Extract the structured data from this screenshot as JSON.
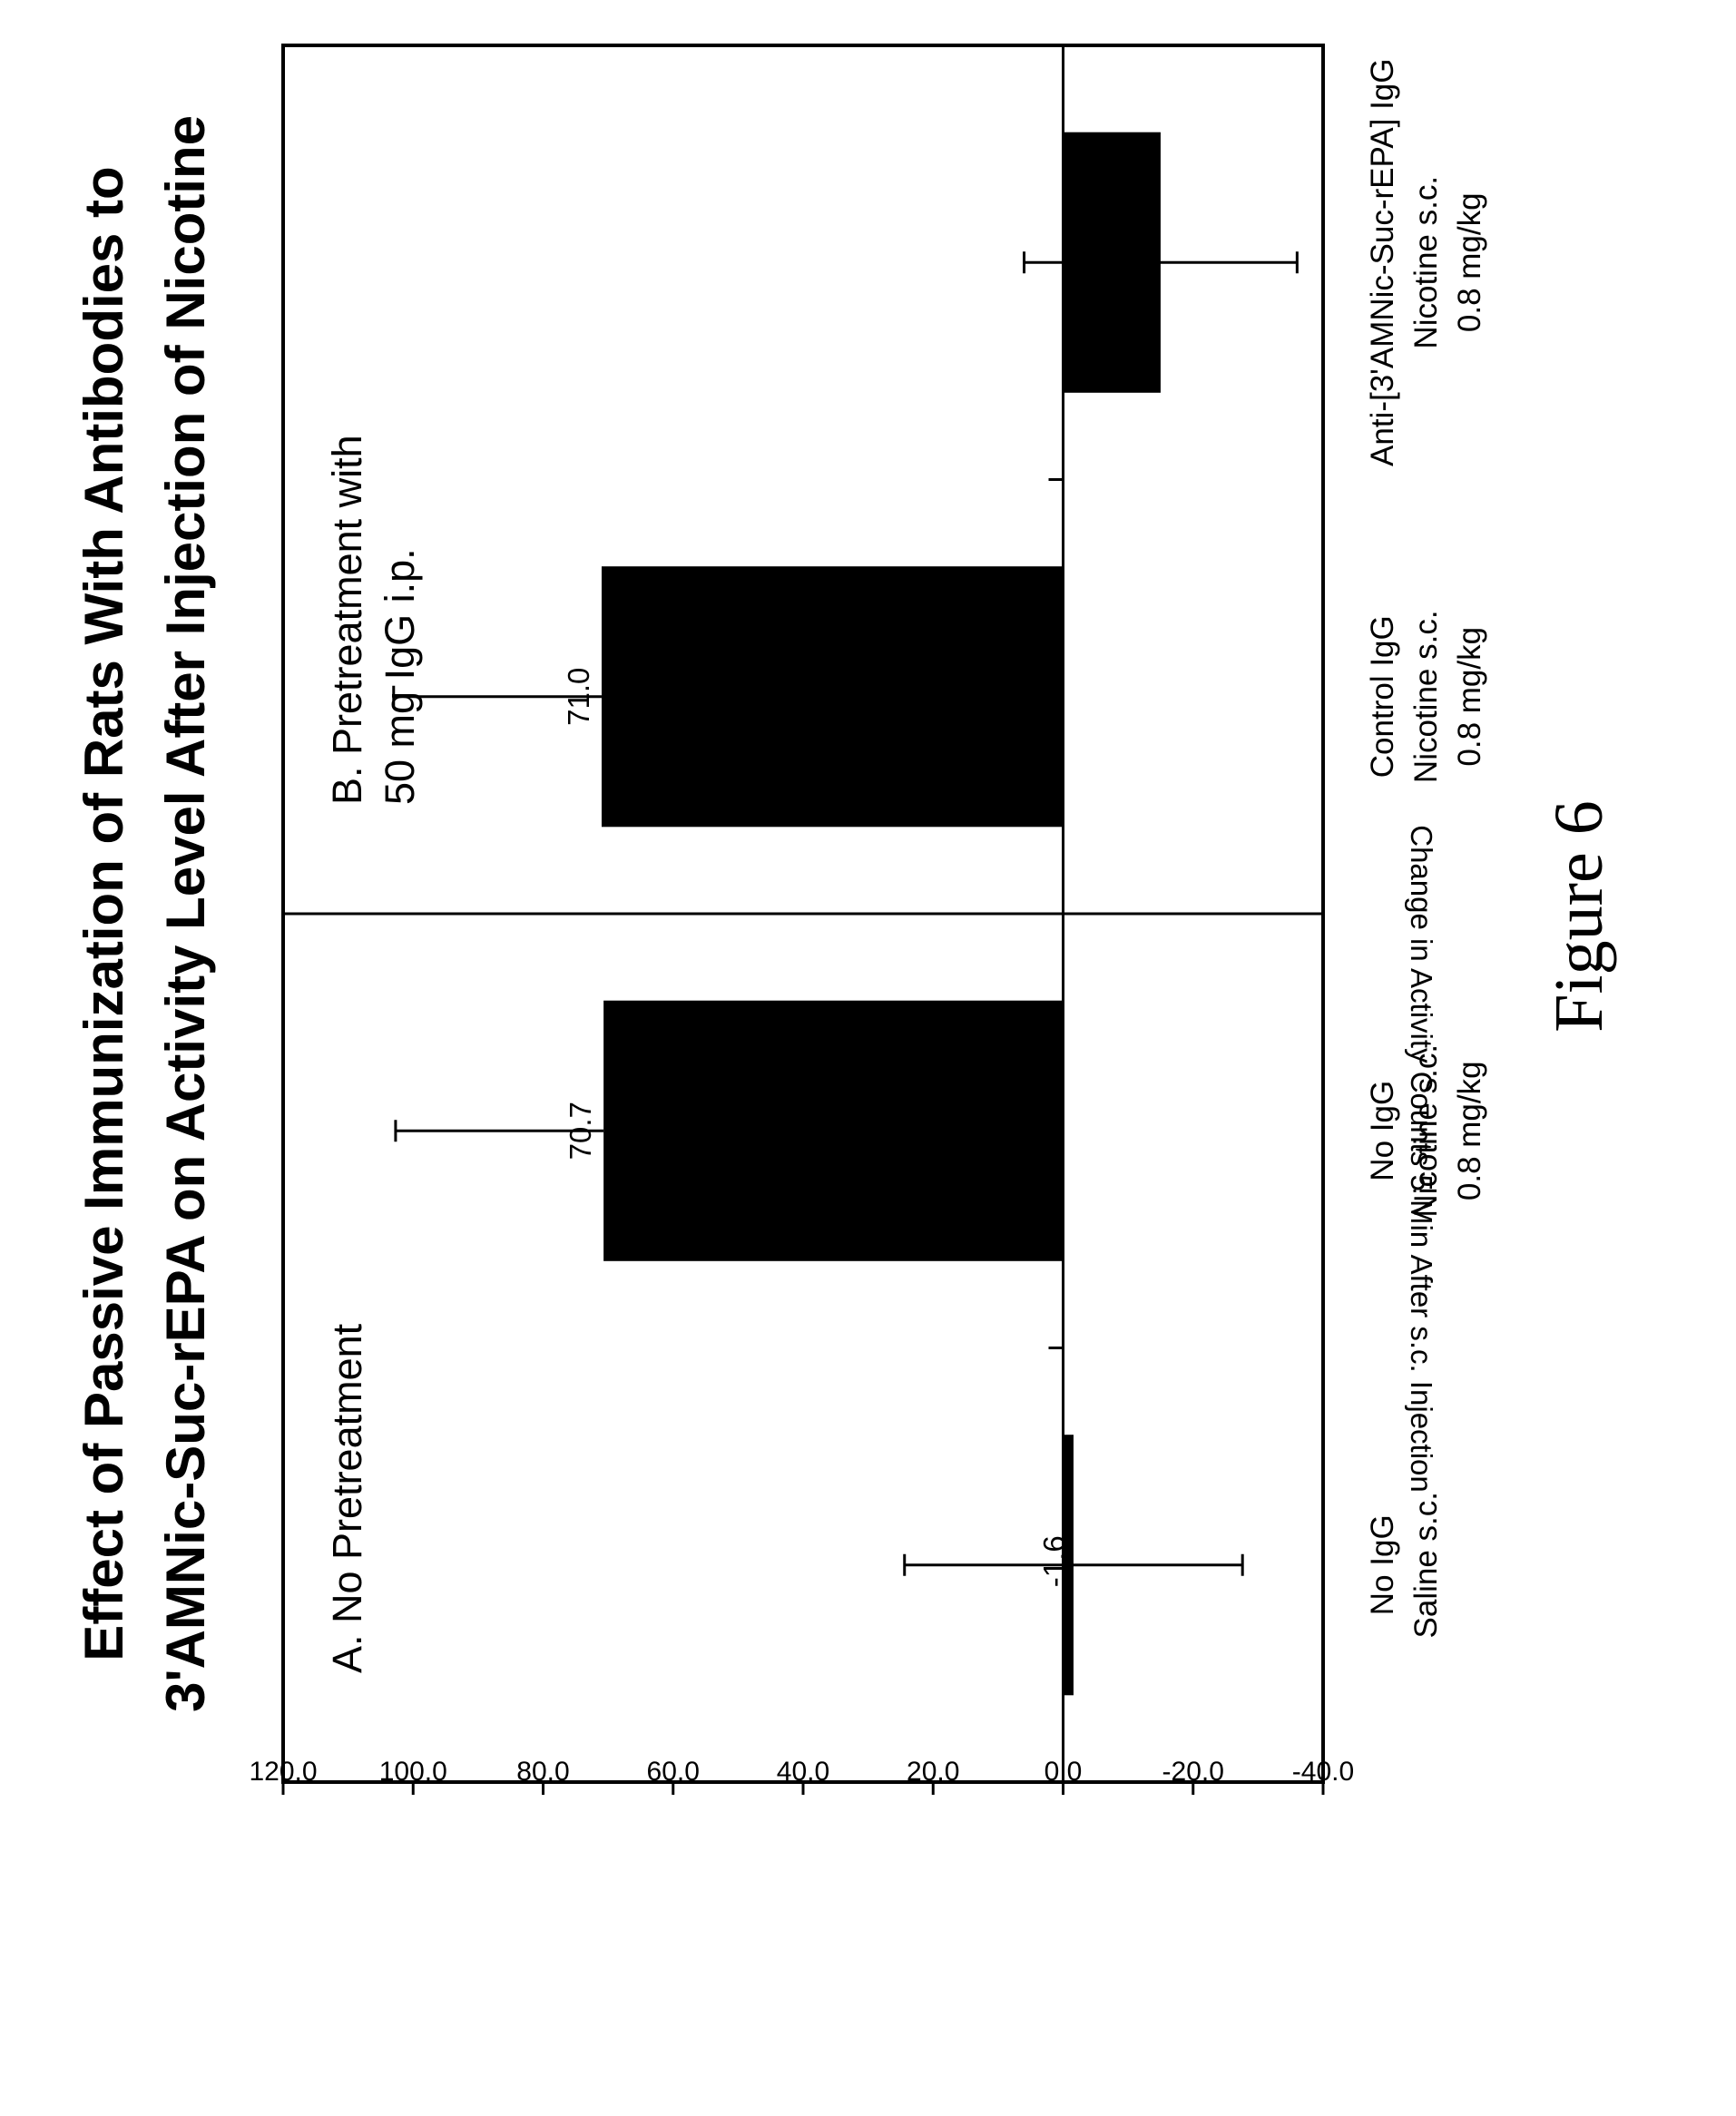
{
  "chart_data": {
    "type": "bar",
    "title_lines": [
      "Effect of Passive Immunization of Rats With Antibodies to",
      "3'AMNic-Suc-rEPA on Activity Level After Injection of Nicotine"
    ],
    "ylabel": "Change in Activity Counts 5 Min After s.c. Injection",
    "ylim": [
      -40,
      120
    ],
    "yticks": [
      "120.0",
      "100.0",
      "80.0",
      "60.0",
      "40.0",
      "20.0",
      "0.0",
      "-20.0",
      "-40.0"
    ],
    "ytick_values": [
      120,
      100,
      80,
      60,
      40,
      20,
      0,
      -20,
      -40
    ],
    "categories": [
      [
        "No IgG",
        "Saline s.c."
      ],
      [
        "No IgG",
        "Nicotine s.c.",
        "0.8 mg/kg"
      ],
      [
        "Control IgG",
        "Nicotine s.c.",
        "0.8 mg/kg"
      ],
      [
        "Anti-[3'AMNic-Suc-rEPA] IgG",
        "Nicotine s.c.",
        "0.8 mg/kg"
      ]
    ],
    "values": [
      -1.6,
      70.7,
      71.0,
      -15.0
    ],
    "value_labels": [
      "-1.6",
      "70.7",
      "71.0",
      "-15.0"
    ],
    "errors": [
      26,
      32,
      32,
      21
    ],
    "panels": [
      {
        "lines": [
          "A. No Pretreatment"
        ]
      },
      {
        "lines": [
          "B. Pretreatment with",
          "50 mg IgG i.p."
        ]
      }
    ],
    "bar_color": "#000000",
    "grid": false
  },
  "figure_caption": "Figure 6"
}
